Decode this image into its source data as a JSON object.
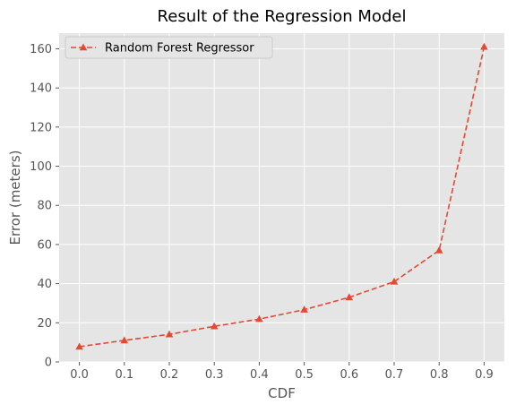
{
  "chart_data": {
    "type": "line",
    "title": "Result of the Regression Model",
    "xlabel": "CDF",
    "ylabel": "Error (meters)",
    "x": [
      0.0,
      0.1,
      0.2,
      0.3,
      0.4,
      0.5,
      0.6,
      0.7,
      0.8,
      0.9
    ],
    "x_tick_labels": [
      "0.0",
      "0.1",
      "0.2",
      "0.3",
      "0.4",
      "0.5",
      "0.6",
      "0.7",
      "0.8",
      "0.9"
    ],
    "y_ticks": [
      0,
      20,
      40,
      60,
      80,
      100,
      120,
      140,
      160
    ],
    "y_tick_labels": [
      "0",
      "20",
      "40",
      "60",
      "80",
      "100",
      "120",
      "140",
      "160"
    ],
    "xlim": [
      -0.045,
      0.945
    ],
    "ylim": [
      0,
      168
    ],
    "grid": true,
    "legend_position": "top-left",
    "series": [
      {
        "name": "Random Forest Regressor",
        "values": [
          7.8,
          11.0,
          14.1,
          18.2,
          21.9,
          26.7,
          33.0,
          41.0,
          57.0,
          161.0
        ],
        "color": "#E24A33",
        "line_style": "dashed",
        "marker": "triangle-up"
      }
    ]
  },
  "style": {
    "plot_background": "#E5E5E5",
    "grid_color": "#FFFFFF",
    "tick_color": "#555555"
  }
}
